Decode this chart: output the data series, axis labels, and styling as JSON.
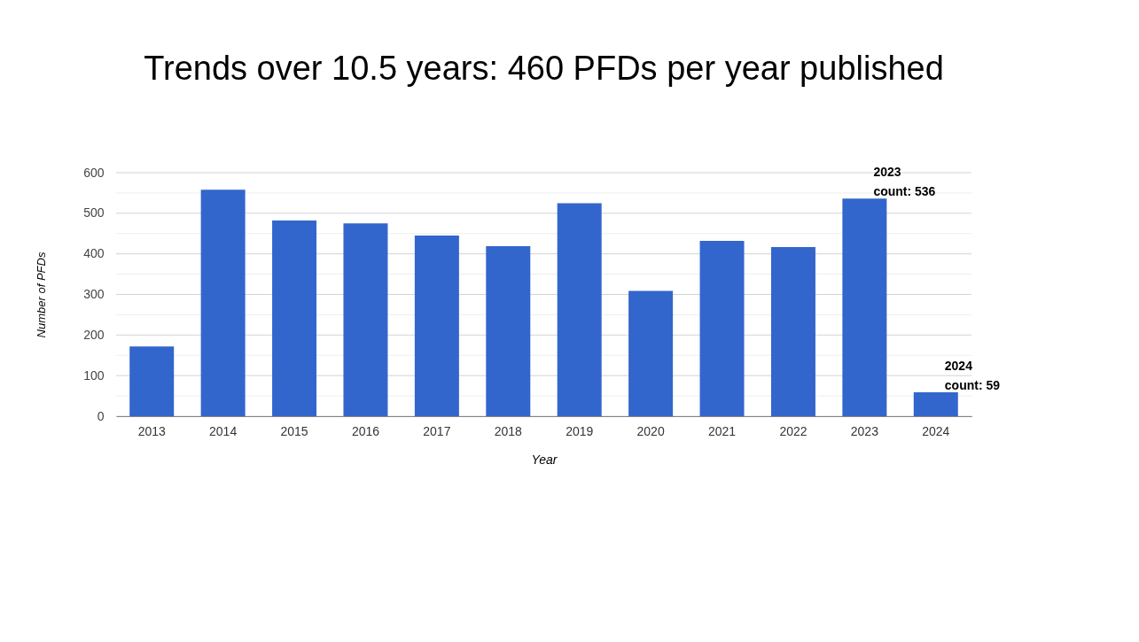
{
  "chart_data": {
    "type": "bar",
    "title": "Trends over 10.5 years: 460 PFDs per year published",
    "xlabel": "Year",
    "ylabel": "Number of PFDs",
    "categories": [
      "2013",
      "2014",
      "2015",
      "2016",
      "2017",
      "2018",
      "2019",
      "2020",
      "2021",
      "2022",
      "2023",
      "2024"
    ],
    "values": [
      172,
      558,
      482,
      475,
      445,
      419,
      525,
      309,
      432,
      417,
      536,
      59
    ],
    "color": "#3366cc",
    "ylim": [
      0,
      600
    ],
    "yticks": [
      0,
      {
        "value": 50,
        "label": null
      },
      100,
      {
        "value": 150,
        "label": null
      },
      200,
      {
        "value": 250,
        "label": null
      },
      300,
      {
        "value": 350,
        "label": null
      },
      400,
      {
        "value": 450,
        "label": null
      },
      500,
      {
        "value": 550,
        "label": null
      },
      600
    ],
    "grid": "y",
    "annotations": [
      {
        "text": "2023\ncount: 536",
        "x": "2023",
        "y": 536
      },
      {
        "text": "2024\ncount: 59",
        "x": "2024",
        "y": 59
      }
    ]
  }
}
